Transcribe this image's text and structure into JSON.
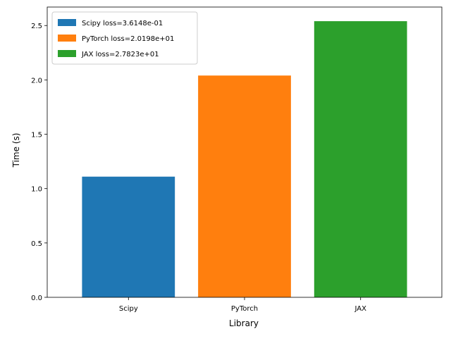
{
  "chart_data": {
    "type": "bar",
    "title": "",
    "xlabel": "Library",
    "ylabel": "Time (s)",
    "categories": [
      "Scipy",
      "PyTorch",
      "JAX"
    ],
    "series": [
      {
        "name": "Scipy loss=3.6148e-01",
        "category": "Scipy",
        "value": 1.11,
        "color": "#1f77b4"
      },
      {
        "name": "PyTorch loss=2.0198e+01",
        "category": "PyTorch",
        "value": 2.04,
        "color": "#ff7f0e"
      },
      {
        "name": "JAX loss=2.7823e+01",
        "category": "JAX",
        "value": 2.54,
        "color": "#2ca02c"
      }
    ],
    "ylim": [
      0,
      2.67
    ],
    "yticks": [
      {
        "value": 0.0,
        "label": "0.0"
      },
      {
        "value": 0.5,
        "label": "0.5"
      },
      {
        "value": 1.0,
        "label": "1.0"
      },
      {
        "value": 1.5,
        "label": "1.5"
      },
      {
        "value": 2.0,
        "label": "2.0"
      },
      {
        "value": 2.5,
        "label": "2.5"
      }
    ],
    "grid": false,
    "legend_position": "top-left"
  }
}
